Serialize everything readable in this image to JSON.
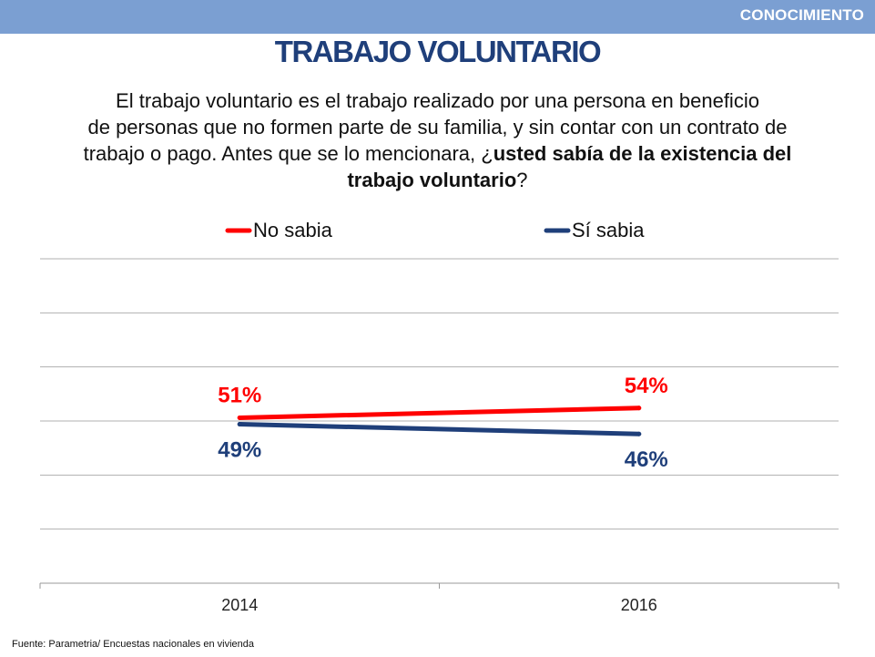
{
  "header": {
    "section_tag": "CONOCIMIENTO",
    "title": "TRABAJO VOLUNTARIO",
    "accent_color": "#7b9fd2",
    "title_color": "#1f3f7a"
  },
  "question": {
    "line1": "El trabajo voluntario es el trabajo realizado por una persona en beneficio",
    "line2": "de personas que no formen parte de su familia, y sin contar con un contrato de",
    "line3_plain": "trabajo o pago. Antes que se lo mencionara,  ¿",
    "line3_bold": "usted sabía de la existencia del",
    "line4_bold": "trabajo voluntario",
    "line4_plain": "?"
  },
  "chart_data": {
    "type": "line",
    "categories": [
      "2014",
      "2016"
    ],
    "series": [
      {
        "name": "No sabia",
        "values": [
          51,
          54
        ],
        "color": "#ff0000",
        "labels": [
          "51%",
          "54%"
        ]
      },
      {
        "name": "Sí sabia",
        "values": [
          49,
          46
        ],
        "color": "#1f3f7a",
        "labels": [
          "49%",
          "46%"
        ]
      }
    ],
    "ylim": [
      0,
      100
    ],
    "grid": true,
    "legend": "top"
  },
  "source": "Fuente: Parametria/ Encuestas nacionales en vivienda"
}
